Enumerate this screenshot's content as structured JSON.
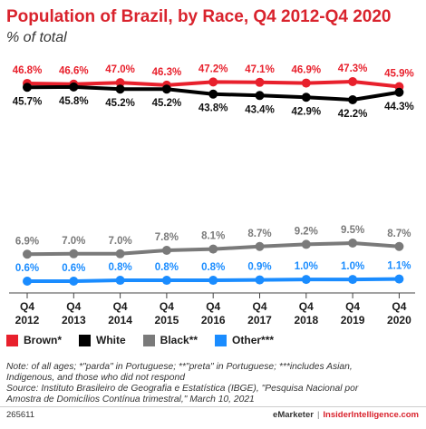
{
  "title": "Population of Brazil, by Race, Q4 2012-Q4 2020",
  "subtitle": "% of total",
  "notes": [
    "Note: of all ages; *\"parda\" in Portuguese; **\"preta\" in Portuguese; ***includes Asian,",
    "Indigenous, and those who did not respond",
    "Source: Instituto Brasileiro de Geografia e Estatística (IBGE), \"Pesquisa Nacional por",
    "Amostra de Domicílios Contínua trimestral,\" March 10, 2021"
  ],
  "footer": {
    "id": "265611",
    "brand1": "eMarketer",
    "separator": "|",
    "brand2": "InsiderIntelligence.com"
  },
  "chart_data": {
    "type": "line",
    "categories": [
      "Q4 2012",
      "Q4 2013",
      "Q4 2014",
      "Q4 2015",
      "Q4 2016",
      "Q4 2017",
      "Q4 2018",
      "Q4 2019",
      "Q4 2020"
    ],
    "category_lines": [
      [
        "Q4",
        "2012"
      ],
      [
        "Q4",
        "2013"
      ],
      [
        "Q4",
        "2014"
      ],
      [
        "Q4",
        "2015"
      ],
      [
        "Q4",
        "2016"
      ],
      [
        "Q4",
        "2017"
      ],
      [
        "Q4",
        "2018"
      ],
      [
        "Q4",
        "2019"
      ],
      [
        "Q4",
        "2020"
      ]
    ],
    "series": [
      {
        "name": "Brown*",
        "color": "#e8202c",
        "values": [
          46.8,
          46.6,
          47.0,
          46.3,
          47.2,
          47.1,
          46.9,
          47.3,
          45.9
        ],
        "labels": [
          "46.8%",
          "46.6%",
          "47.0%",
          "46.3%",
          "47.2%",
          "47.1%",
          "46.9%",
          "47.3%",
          "45.9%"
        ],
        "label_position": "above"
      },
      {
        "name": "White",
        "color": "#000000",
        "values": [
          45.7,
          45.8,
          45.2,
          45.2,
          43.8,
          43.4,
          42.9,
          42.2,
          44.3
        ],
        "labels": [
          "45.7%",
          "45.8%",
          "45.2%",
          "45.2%",
          "43.8%",
          "43.4%",
          "42.9%",
          "42.2%",
          "44.3%"
        ],
        "label_position": "below"
      },
      {
        "name": "Black**",
        "color": "#7a7a7a",
        "values": [
          6.9,
          7.0,
          7.0,
          7.8,
          8.1,
          8.7,
          9.2,
          9.5,
          8.7
        ],
        "labels": [
          "6.9%",
          "7.0%",
          "7.0%",
          "7.8%",
          "8.1%",
          "8.7%",
          "9.2%",
          "9.5%",
          "8.7%"
        ],
        "label_position": "above"
      },
      {
        "name": "Other***",
        "color": "#1a8cff",
        "values": [
          0.6,
          0.6,
          0.8,
          0.8,
          0.8,
          0.9,
          1.0,
          1.0,
          1.1
        ],
        "labels": [
          "0.6%",
          "0.6%",
          "0.8%",
          "0.8%",
          "0.8%",
          "0.9%",
          "1.0%",
          "1.0%",
          "1.1%"
        ],
        "label_position": "above"
      }
    ],
    "ylim": [
      0,
      48
    ],
    "grid": false,
    "legend": "bottom-left"
  }
}
